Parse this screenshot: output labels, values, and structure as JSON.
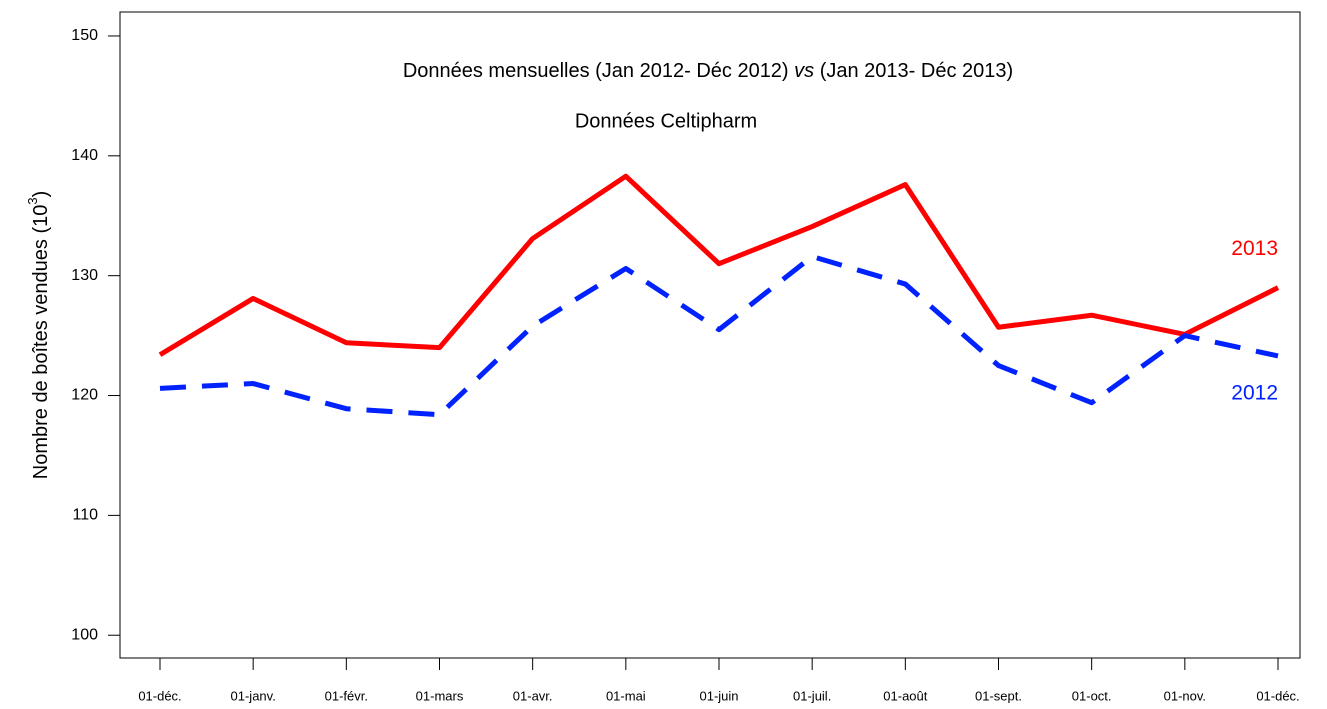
{
  "chart_data": {
    "type": "line",
    "title": [
      "Données mensuelles (Jan 2012- Déc 2012) ",
      "vs",
      " (Jan 2013- Déc 2013)"
    ],
    "subtitle": "Données Celtipharm",
    "y_label": [
      "Nombre de boîtes vendues (10",
      "3",
      ")"
    ],
    "categories": [
      "01-déc.",
      "01-janv.",
      "01-févr.",
      "01-mars",
      "01-avr.",
      "01-mai",
      "01-juin",
      "01-juil.",
      "01-août",
      "01-sept.",
      "01-oct.",
      "01-nov.",
      "01-déc."
    ],
    "series": [
      {
        "name": "2013",
        "color": "#ff0000",
        "dashed": false,
        "values": [
          123.4,
          128.1,
          124.4,
          124.0,
          133.1,
          138.3,
          131.0,
          134.1,
          137.6,
          125.7,
          126.7,
          125.1,
          129.0
        ]
      },
      {
        "name": "2012",
        "color": "#0022ff",
        "dashed": true,
        "values": [
          120.6,
          121.0,
          118.9,
          118.4,
          125.8,
          130.6,
          125.5,
          131.6,
          129.3,
          122.5,
          119.4,
          125.0,
          123.3
        ]
      }
    ],
    "ylim": [
      98.1,
      152.0
    ],
    "yticks": [
      100,
      110,
      120,
      130,
      140,
      150
    ],
    "grid": false
  }
}
